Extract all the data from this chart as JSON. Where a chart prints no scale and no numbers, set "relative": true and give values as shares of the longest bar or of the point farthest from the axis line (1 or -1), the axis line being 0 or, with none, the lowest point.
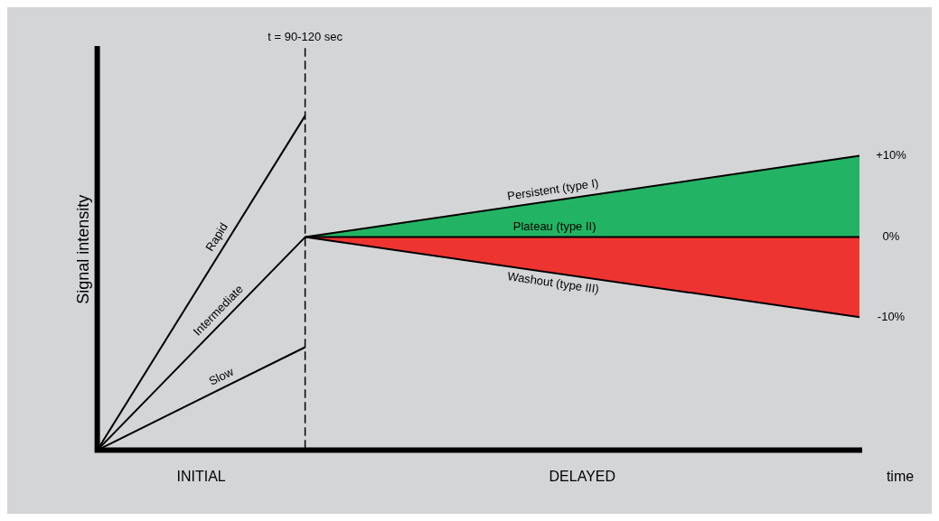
{
  "chart_data": {
    "type": "line",
    "relative": true,
    "ylabel": "Signal intensity",
    "xlabel": "time",
    "categories": [
      null,
      null,
      null,
      null,
      null,
      null,
      null,
      null,
      null,
      null,
      null,
      null
    ],
    "series": [
      {
        "name": "Rapid",
        "color": "#000000",
        "values": [
          0,
          null,
          null,
          1,
          null,
          null,
          null,
          null,
          null,
          null,
          null,
          null
        ]
      },
      {
        "name": "Intermediate",
        "color": "#000000",
        "values": [
          0,
          null,
          null,
          0.637,
          null,
          null,
          null,
          null,
          null,
          null,
          null,
          null
        ]
      },
      {
        "name": "Slow",
        "color": "#000000",
        "values": [
          0,
          null,
          null,
          0.308,
          null,
          null,
          null,
          null,
          null,
          null,
          null,
          null
        ]
      },
      {
        "name": "Plateau (type II)",
        "color": "#000000",
        "values": [
          null,
          null,
          null,
          0.637,
          null,
          null,
          null,
          null,
          null,
          null,
          null,
          0.637
        ]
      },
      {
        "name": "Persistent (type I)",
        "type": "area",
        "color": "#22b464",
        "values": [
          null,
          null,
          null,
          0.637,
          null,
          null,
          null,
          null,
          null,
          null,
          null,
          0.88
        ]
      },
      {
        "name": "Washout (type III)",
        "type": "area",
        "color": "#ee3430",
        "values": [
          null,
          null,
          null,
          0.637,
          null,
          null,
          null,
          null,
          null,
          null,
          null,
          0.398
        ]
      }
    ],
    "annotations": [
      "t = 90-120 sec",
      "INITIAL",
      "DELAYED",
      "+10%",
      "0%",
      "-10%"
    ],
    "marker": "none",
    "line_style": "solid"
  }
}
